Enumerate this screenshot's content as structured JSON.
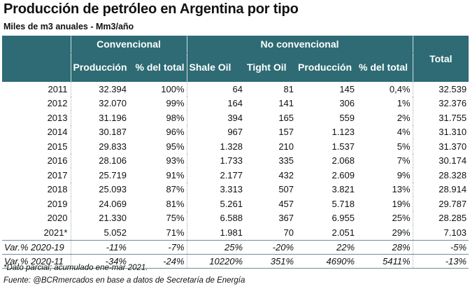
{
  "title": "Producción de petróleo en Argentina por tipo",
  "subtitle": "Miles de m3 anuales - Mm3/año",
  "headers": {
    "group_conv": "Convencional",
    "group_noconv": "No convencional",
    "total": "Total",
    "produccion": "Producción",
    "pct_total": "% del total",
    "shale": "Shale Oil",
    "tight": "Tight Oil",
    "produccion_nc": "Producción",
    "pct_total_nc": "% del total"
  },
  "rows": [
    {
      "year": "2011",
      "conv": "32.394",
      "conv_pct": "100%",
      "shale": "64",
      "tight": "81",
      "nc": "145",
      "nc_pct": "0,4%",
      "total": "32.539"
    },
    {
      "year": "2012",
      "conv": "32.070",
      "conv_pct": "99%",
      "shale": "164",
      "tight": "141",
      "nc": "306",
      "nc_pct": "1%",
      "total": "32.376"
    },
    {
      "year": "2013",
      "conv": "31.196",
      "conv_pct": "98%",
      "shale": "394",
      "tight": "165",
      "nc": "559",
      "nc_pct": "2%",
      "total": "31.755"
    },
    {
      "year": "2014",
      "conv": "30.187",
      "conv_pct": "96%",
      "shale": "967",
      "tight": "157",
      "nc": "1.123",
      "nc_pct": "4%",
      "total": "31.310"
    },
    {
      "year": "2015",
      "conv": "29.833",
      "conv_pct": "95%",
      "shale": "1.328",
      "tight": "210",
      "nc": "1.537",
      "nc_pct": "5%",
      "total": "31.370"
    },
    {
      "year": "2016",
      "conv": "28.106",
      "conv_pct": "93%",
      "shale": "1.733",
      "tight": "335",
      "nc": "2.068",
      "nc_pct": "7%",
      "total": "30.174"
    },
    {
      "year": "2017",
      "conv": "25.719",
      "conv_pct": "91%",
      "shale": "2.177",
      "tight": "432",
      "nc": "2.609",
      "nc_pct": "9%",
      "total": "28.328"
    },
    {
      "year": "2018",
      "conv": "25.093",
      "conv_pct": "87%",
      "shale": "3.313",
      "tight": "507",
      "nc": "3.821",
      "nc_pct": "13%",
      "total": "28.914"
    },
    {
      "year": "2019",
      "conv": "24.069",
      "conv_pct": "81%",
      "shale": "5.261",
      "tight": "457",
      "nc": "5.718",
      "nc_pct": "19%",
      "total": "29.787"
    },
    {
      "year": "2020",
      "conv": "21.330",
      "conv_pct": "75%",
      "shale": "6.588",
      "tight": "367",
      "nc": "6.955",
      "nc_pct": "25%",
      "total": "28.285"
    },
    {
      "year": "2021*",
      "conv": "5.052",
      "conv_pct": "71%",
      "shale": "1.981",
      "tight": "70",
      "nc": "2.051",
      "nc_pct": "29%",
      "total": "7.103"
    }
  ],
  "var1": {
    "label": "Var.% 2020-19",
    "conv": "-11%",
    "conv_pct": "-7%",
    "shale": "25%",
    "tight": "-20%",
    "nc": "22%",
    "nc_pct": "28%",
    "total": "-5%"
  },
  "var2": {
    "label": "Var.% 2020-11",
    "conv": "-34%",
    "conv_pct": "-24%",
    "shale": "10220%",
    "tight": "351%",
    "nc": "4690%",
    "nc_pct": "5411%",
    "total": "-13%"
  },
  "footnote": "*Dato parcial; acumulado ene-mar 2021.",
  "source": "Fuente: @BCRmercados en base a datos de Secretaría de Energía"
}
